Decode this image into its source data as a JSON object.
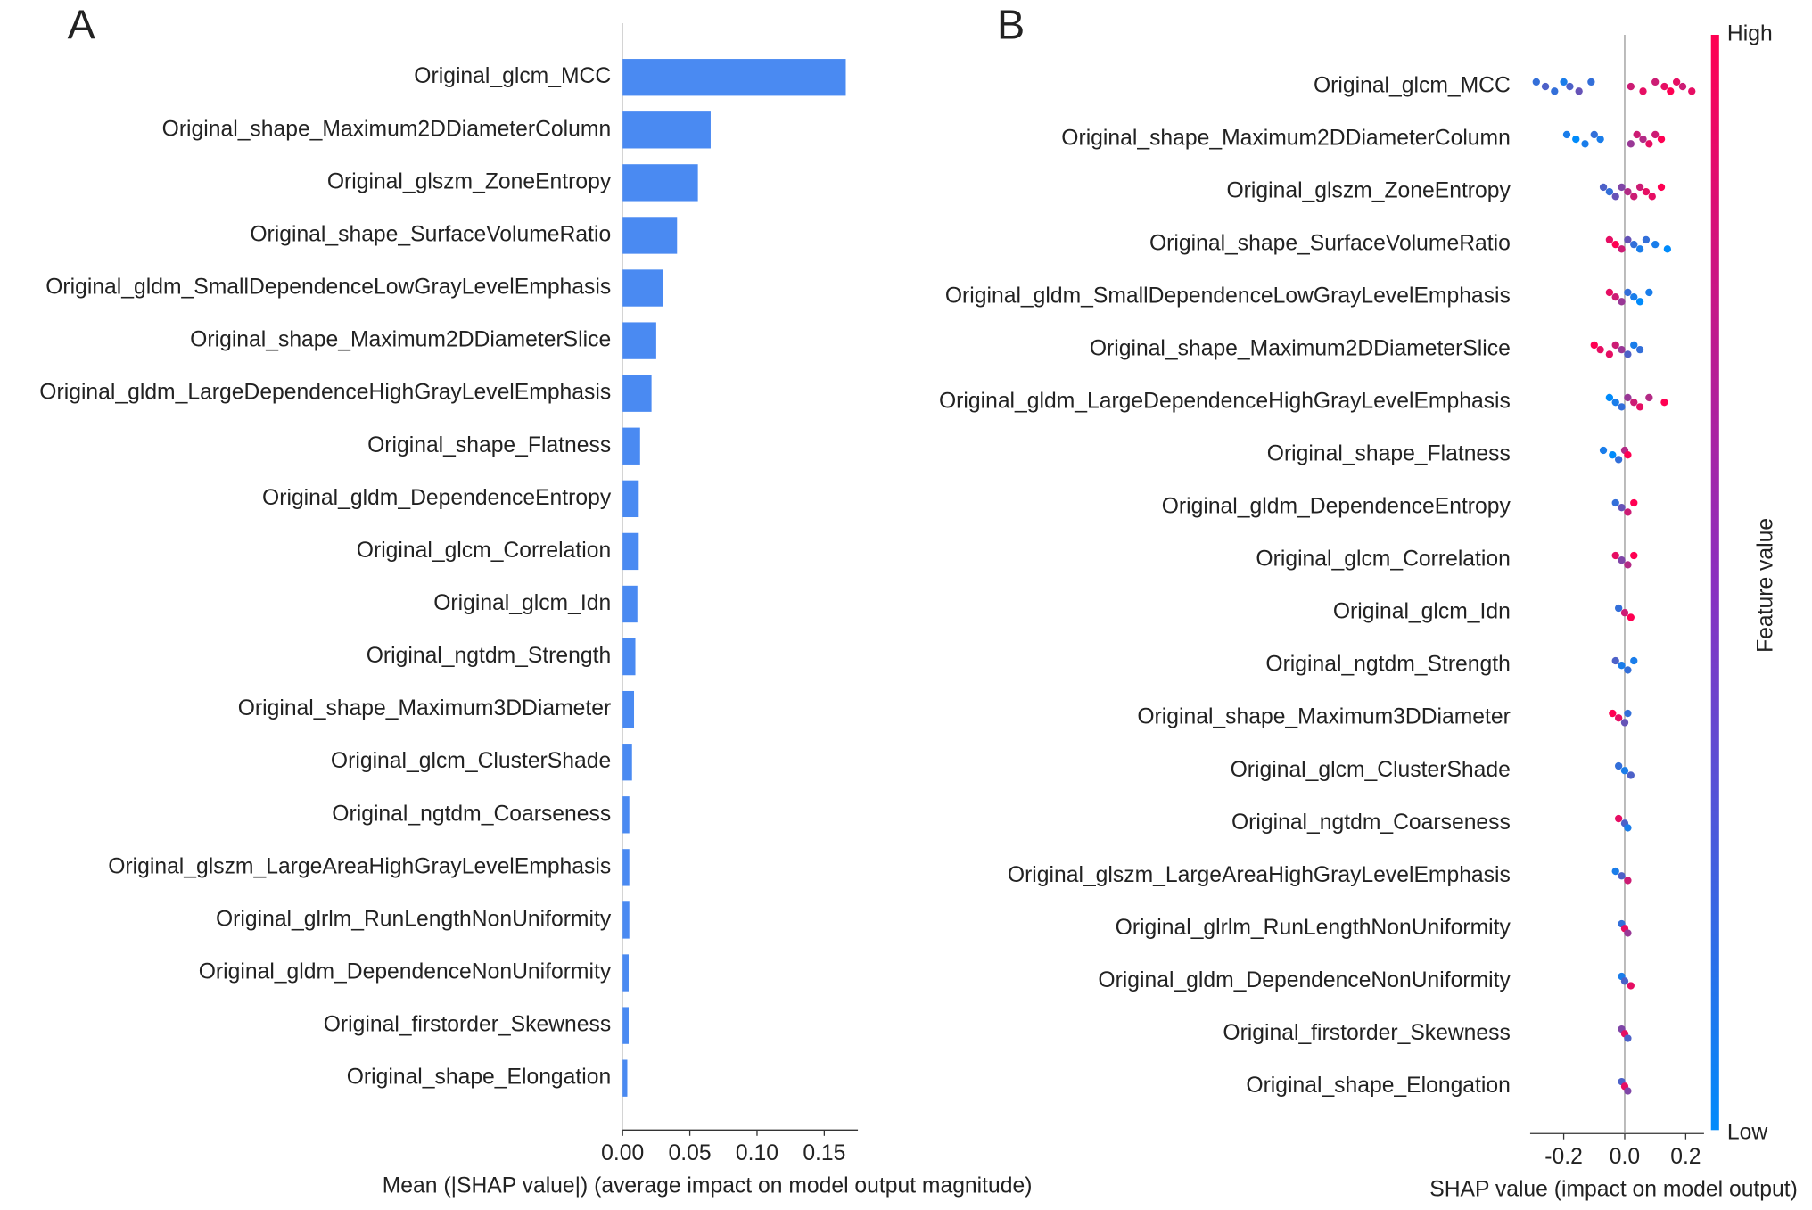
{
  "chart_data": [
    {
      "type": "bar",
      "orientation": "horizontal",
      "panel_label": "A",
      "x_label": "Mean (|SHAP value|) (average impact on model output magnitude)",
      "color": "#4a8af2",
      "categories": [
        "Original_glcm_MCC",
        "Original_shape_Maximum2DDiameterColumn",
        "Original_glszm_ZoneEntropy",
        "Original_shape_SurfaceVolumeRatio",
        "Original_gldm_SmallDependenceLowGrayLevelEmphasis",
        "Original_shape_Maximum2DDiameterSlice",
        "Original_gldm_LargeDependenceHighGrayLevelEmphasis",
        "Original_shape_Flatness",
        "Original_gldm_DependenceEntropy",
        "Original_glcm_Correlation",
        "Original_glcm_Idn",
        "Original_ngtdm_Strength",
        "Original_shape_Maximum3DDiameter",
        "Original_glcm_ClusterShade",
        "Original_ngtdm_Coarseness",
        "Original_glszm_LargeAreaHighGrayLevelEmphasis",
        "Original_glrlm_RunLengthNonUniformity",
        "Original_gldm_DependenceNonUniformity",
        "Original_firstorder_Skewness",
        "Original_shape_Elongation"
      ],
      "values": [
        0.166,
        0.0655,
        0.056,
        0.0405,
        0.03,
        0.025,
        0.0215,
        0.013,
        0.012,
        0.012,
        0.011,
        0.0095,
        0.0085,
        0.007,
        0.005,
        0.005,
        0.005,
        0.0045,
        0.0045,
        0.0035
      ],
      "xlim": [
        0,
        0.175
      ],
      "xticks": [
        {
          "value": 0,
          "label": "0.00"
        },
        0.05,
        {
          "value": 0.1,
          "label": "0.10"
        },
        0.15
      ]
    },
    {
      "type": "beeswarm",
      "panel_label": "B",
      "x_label": "SHAP value (impact on model output)",
      "low_color": "#008bfb",
      "high_color": "#ff0052",
      "colorbar": {
        "high_label": "High",
        "low_label": "Low",
        "label": "Feature value"
      },
      "categories": [
        "Original_glcm_MCC",
        "Original_shape_Maximum2DDiameterColumn",
        "Original_glszm_ZoneEntropy",
        "Original_shape_SurfaceVolumeRatio",
        "Original_gldm_SmallDependenceLowGrayLevelEmphasis",
        "Original_shape_Maximum2DDiameterSlice",
        "Original_gldm_LargeDependenceHighGrayLevelEmphasis",
        "Original_shape_Flatness",
        "Original_gldm_DependenceEntropy",
        "Original_glcm_Correlation",
        "Original_glcm_Idn",
        "Original_ngtdm_Strength",
        "Original_shape_Maximum3DDiameter",
        "Original_glcm_ClusterShade",
        "Original_ngtdm_Coarseness",
        "Original_glszm_LargeAreaHighGrayLevelEmphasis",
        "Original_glrlm_RunLengthNonUniformity",
        "Original_gldm_DependenceNonUniformity",
        "Original_firstorder_Skewness",
        "Original_shape_Elongation"
      ],
      "shap_values": [
        [
          -0.29,
          -0.26,
          -0.23,
          -0.2,
          -0.18,
          -0.15,
          -0.11,
          0.02,
          0.06,
          0.1,
          0.13,
          0.15,
          0.17,
          0.19,
          0.22
        ],
        [
          -0.19,
          -0.16,
          -0.13,
          -0.1,
          -0.08,
          0.02,
          0.04,
          0.06,
          0.08,
          0.1,
          0.12
        ],
        [
          -0.07,
          -0.05,
          -0.03,
          -0.01,
          0.01,
          0.03,
          0.05,
          0.07,
          0.09,
          0.12
        ],
        [
          -0.05,
          -0.03,
          -0.01,
          0.01,
          0.03,
          0.05,
          0.07,
          0.1,
          0.14
        ],
        [
          -0.05,
          -0.03,
          -0.01,
          0.01,
          0.03,
          0.05,
          0.08
        ],
        [
          -0.1,
          -0.08,
          -0.05,
          -0.03,
          -0.01,
          0.01,
          0.03,
          0.05
        ],
        [
          -0.05,
          -0.03,
          -0.01,
          0.01,
          0.03,
          0.05,
          0.08,
          0.13
        ],
        [
          -0.07,
          -0.04,
          -0.02,
          0,
          0.01
        ],
        [
          -0.03,
          -0.01,
          0.01,
          0.03
        ],
        [
          -0.03,
          -0.01,
          0.01,
          0.03
        ],
        [
          -0.02,
          0,
          0.02
        ],
        [
          -0.03,
          -0.01,
          0.01,
          0.03
        ],
        [
          -0.04,
          -0.02,
          0,
          0.01
        ],
        [
          -0.02,
          0,
          0.02
        ],
        [
          -0.02,
          0,
          0.01
        ],
        [
          -0.03,
          -0.01,
          0.01
        ],
        [
          -0.01,
          0,
          0.01
        ],
        [
          -0.01,
          0,
          0.02
        ],
        [
          -0.01,
          0,
          0.01
        ],
        [
          -0.01,
          0,
          0.01
        ]
      ],
      "feature_values": [
        [
          0.2,
          0.3,
          0.2,
          0.1,
          0.3,
          0.4,
          0.2,
          0.8,
          0.9,
          0.8,
          0.9,
          1,
          0.9,
          0.8,
          0.9
        ],
        [
          0.1,
          0,
          0.1,
          0.2,
          0.1,
          0.6,
          0.8,
          0.7,
          0.9,
          0.8,
          1
        ],
        [
          0.3,
          0.2,
          0.4,
          0.5,
          0.7,
          0.8,
          0.8,
          0.9,
          0.9,
          1
        ],
        [
          0.9,
          1,
          0.8,
          0.4,
          0.2,
          0.1,
          0.2,
          0.1,
          0
        ],
        [
          0.9,
          0.8,
          0.6,
          0.2,
          0.1,
          0,
          0.1
        ],
        [
          1,
          0.9,
          0.9,
          0.8,
          0.6,
          0.3,
          0.1,
          0.2
        ],
        [
          0,
          0.1,
          0.2,
          0.6,
          0.8,
          0.9,
          0.7,
          1
        ],
        [
          0.1,
          0,
          0.2,
          0.7,
          1
        ],
        [
          0.2,
          0.4,
          0.8,
          1
        ],
        [
          0.9,
          0.5,
          0.7,
          1
        ],
        [
          0.2,
          0.8,
          1
        ],
        [
          0.3,
          0.1,
          0.2,
          0.1
        ],
        [
          1,
          0.9,
          0.4,
          0.2
        ],
        [
          0.2,
          0.1,
          0.3
        ],
        [
          0.9,
          0.3,
          0.1
        ],
        [
          0.1,
          0.3,
          0.8
        ],
        [
          0.2,
          0.9,
          0.6
        ],
        [
          0.1,
          0.3,
          0.9
        ],
        [
          0.5,
          0.9,
          0.3
        ],
        [
          0.3,
          0.9,
          0.5
        ]
      ],
      "xlim": [
        -0.31,
        0.26
      ],
      "xticks": [
        -0.2,
        {
          "value": 0,
          "label": "0.0"
        },
        0.2
      ]
    }
  ]
}
